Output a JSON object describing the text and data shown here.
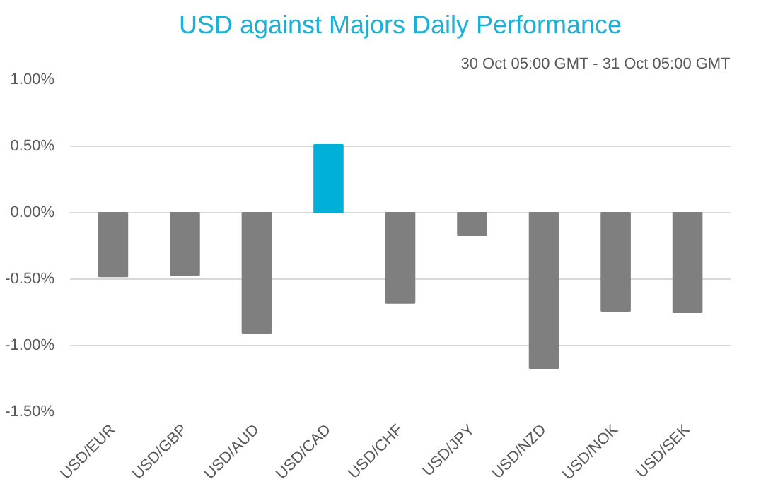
{
  "chart_data": {
    "type": "bar",
    "title": "USD against Majors Daily Performance",
    "subtitle": "30 Oct 05:00 GMT - 31 Oct 05:00 GMT",
    "categories": [
      "USD/EUR",
      "USD/GBP",
      "USD/AUD",
      "USD/CAD",
      "USD/CHF",
      "USD/JPY",
      "USD/NZD",
      "USD/NOK",
      "USD/SEK"
    ],
    "values": [
      -0.48,
      -0.47,
      -0.91,
      0.51,
      -0.68,
      -0.17,
      -1.17,
      -0.74,
      -0.75
    ],
    "colors": [
      "#7f7f7f",
      "#7f7f7f",
      "#7f7f7f",
      "#00b0d8",
      "#7f7f7f",
      "#7f7f7f",
      "#7f7f7f",
      "#7f7f7f",
      "#7f7f7f"
    ],
    "ylim": [
      -1.5,
      1.0
    ],
    "yticks": [
      {
        "value": -1.5,
        "label": "-1.50%"
      },
      {
        "value": -1.0,
        "label": "-1.00%"
      },
      {
        "value": -0.5,
        "label": "-0.50%"
      },
      {
        "value": 0.0,
        "label": "0.00%"
      },
      {
        "value": 0.5,
        "label": "0.50%"
      },
      {
        "value": 1.0,
        "label": "1.00%"
      }
    ],
    "grid": "y"
  }
}
